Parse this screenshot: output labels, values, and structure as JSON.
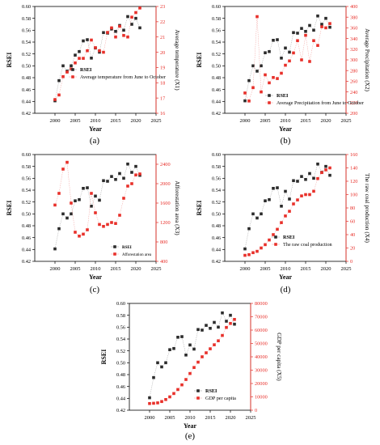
{
  "colors": {
    "rsei": "#2b2b2b",
    "secondary": "#e8302a",
    "axis": "#000000"
  },
  "chart_data": [
    {
      "type": "line",
      "panel_label": "(a)",
      "xlabel": "Year",
      "ylabel": "RSEI",
      "y2label": "Average temperature (X1)",
      "xlim": [
        1995,
        2025
      ],
      "xticks": [
        "2000",
        "2005",
        "2010",
        "2015",
        "2020",
        "2025"
      ],
      "ylim": [
        0.42,
        0.6
      ],
      "yticks": [
        "0.42",
        "0.44",
        "0.46",
        "0.48",
        "0.50",
        "0.52",
        "0.54",
        "0.56",
        "0.58",
        "0.60"
      ],
      "y2lim": [
        16,
        23
      ],
      "y2ticks": [
        "16",
        "17",
        "18",
        "19",
        "20",
        "21",
        "22",
        "23"
      ],
      "legend_position": "center-right",
      "x": [
        2000,
        2001,
        2002,
        2003,
        2004,
        2005,
        2006,
        2007,
        2008,
        2009,
        2010,
        2011,
        2012,
        2013,
        2014,
        2015,
        2016,
        2017,
        2018,
        2019,
        2020,
        2021
      ],
      "series": [
        {
          "name": "RSEI",
          "axis": "left",
          "values": [
            0.441,
            0.475,
            0.5,
            0.491,
            0.5,
            0.518,
            0.524,
            0.542,
            0.544,
            0.513,
            0.53,
            0.523,
            0.556,
            0.555,
            0.562,
            0.558,
            0.568,
            0.56,
            0.583,
            0.57,
            0.58,
            0.564
          ]
        },
        {
          "name": "Average temperature from June to October",
          "axis": "right",
          "values": [
            16.9,
            17.2,
            18.4,
            18.7,
            18.9,
            19.3,
            19.6,
            19.6,
            20.1,
            20.8,
            20.3,
            20.1,
            20.0,
            21.3,
            21.6,
            21.0,
            21.7,
            21.1,
            21.0,
            22.3,
            22.6,
            22.9
          ]
        }
      ]
    },
    {
      "type": "line",
      "panel_label": "(b)",
      "xlabel": "Year",
      "ylabel": "RSEI",
      "y2label": "Average Precipitation (X2)",
      "xlim": [
        1995,
        2025
      ],
      "xticks": [
        "2000",
        "2005",
        "2010",
        "2015",
        "2020",
        "2025"
      ],
      "ylim": [
        0.42,
        0.6
      ],
      "yticks": [
        "0.42",
        "0.44",
        "0.46",
        "0.48",
        "0.50",
        "0.52",
        "0.54",
        "0.56",
        "0.58",
        "0.60"
      ],
      "y2lim": [
        200,
        400
      ],
      "y2ticks": [
        "200",
        "220",
        "240",
        "260",
        "280",
        "300",
        "320",
        "340",
        "360",
        "380",
        "400"
      ],
      "legend_position": "bottom-right",
      "x": [
        2000,
        2001,
        2002,
        2003,
        2004,
        2005,
        2006,
        2007,
        2008,
        2009,
        2010,
        2011,
        2012,
        2013,
        2014,
        2015,
        2016,
        2017,
        2018,
        2019,
        2020,
        2021
      ],
      "series": [
        {
          "name": "RSEI",
          "axis": "left",
          "values": [
            0.441,
            0.475,
            0.5,
            0.491,
            0.5,
            0.522,
            0.524,
            0.543,
            0.544,
            0.513,
            0.53,
            0.523,
            0.556,
            0.555,
            0.563,
            0.558,
            0.568,
            0.56,
            0.584,
            0.57,
            0.58,
            0.565
          ]
        },
        {
          "name": "Average Precipitation from June to October",
          "axis": "right",
          "values": [
            238,
            223,
            248,
            381,
            240,
            272,
            257,
            267,
            265,
            275,
            290,
            298,
            313,
            336,
            300,
            346,
            297,
            336,
            327,
            362,
            360,
            368
          ]
        }
      ]
    },
    {
      "type": "line",
      "panel_label": "(c)",
      "xlabel": "Year",
      "ylabel": "RSEI",
      "y2label": "Afforestation area (X3)",
      "xlim": [
        1995,
        2025
      ],
      "xticks": [
        "2000",
        "2005",
        "2010",
        "2015",
        "2020",
        "2025"
      ],
      "ylim": [
        0.42,
        0.6
      ],
      "yticks": [
        "0.42",
        "0.44",
        "0.46",
        "0.48",
        "0.50",
        "0.52",
        "0.54",
        "0.56",
        "0.58",
        "0.60"
      ],
      "y2lim": [
        400,
        2600
      ],
      "y2ticks": [
        "400",
        "800",
        "1200",
        "1600",
        "2000",
        "2400"
      ],
      "legend_position": "bottom-right",
      "x": [
        2000,
        2001,
        2002,
        2003,
        2004,
        2005,
        2006,
        2007,
        2008,
        2009,
        2010,
        2011,
        2012,
        2013,
        2014,
        2015,
        2016,
        2017,
        2018,
        2019,
        2020,
        2021
      ],
      "series": [
        {
          "name": "RSEI",
          "axis": "left",
          "values": [
            0.441,
            0.475,
            0.5,
            0.493,
            0.5,
            0.522,
            0.524,
            0.543,
            0.544,
            0.513,
            0.53,
            0.523,
            0.556,
            0.555,
            0.563,
            0.558,
            0.568,
            0.56,
            0.584,
            0.57,
            0.58,
            0.565
          ]
        },
        {
          "name": "Afforestation area",
          "axis": "right",
          "values": [
            1560,
            1800,
            2300,
            2440,
            1600,
            1000,
            920,
            960,
            1050,
            1800,
            1400,
            1160,
            1120,
            1160,
            1200,
            1180,
            1350,
            1700,
            1950,
            2000,
            2180,
            2200
          ]
        }
      ]
    },
    {
      "type": "line",
      "panel_label": "(d)",
      "xlabel": "Year",
      "ylabel": "RSEI",
      "y2label": "The raw coal production (X4)",
      "xlim": [
        1995,
        2025
      ],
      "xticks": [
        "2000",
        "2005",
        "2010",
        "2015",
        "2020",
        "2025"
      ],
      "ylim": [
        0.42,
        0.6
      ],
      "yticks": [
        "0.42",
        "0.44",
        "0.46",
        "0.48",
        "0.50",
        "0.52",
        "0.54",
        "0.56",
        "0.58",
        "0.60"
      ],
      "y2lim": [
        0,
        160
      ],
      "y2ticks": [
        "0",
        "20",
        "40",
        "60",
        "80",
        "100",
        "120",
        "140",
        "160"
      ],
      "legend_position": "bottom-right",
      "x": [
        2000,
        2001,
        2002,
        2003,
        2004,
        2005,
        2006,
        2007,
        2008,
        2009,
        2010,
        2011,
        2012,
        2013,
        2014,
        2015,
        2016,
        2017,
        2018,
        2019,
        2020,
        2021
      ],
      "series": [
        {
          "name": "RSEI",
          "axis": "left",
          "values": [
            0.441,
            0.475,
            0.5,
            0.493,
            0.5,
            0.522,
            0.524,
            0.543,
            0.544,
            0.513,
            0.538,
            0.525,
            0.556,
            0.555,
            0.563,
            0.558,
            0.568,
            0.56,
            0.584,
            0.57,
            0.58,
            0.565
          ]
        },
        {
          "name": "The raw coal production",
          "axis": "right",
          "values": [
            9,
            10,
            13,
            15,
            20,
            25,
            32,
            40,
            48,
            58,
            68,
            75,
            86,
            92,
            98,
            100,
            100,
            105,
            124,
            133,
            137,
            140
          ]
        }
      ]
    },
    {
      "type": "line",
      "panel_label": "(e)",
      "xlabel": "Year",
      "ylabel": "RSEI",
      "y2label": "GDP per capita (X5)",
      "xlim": [
        1995,
        2025
      ],
      "xticks": [
        "2000",
        "2005",
        "2010",
        "2015",
        "2020",
        "2025"
      ],
      "ylim": [
        0.42,
        0.6
      ],
      "yticks": [
        "0.42",
        "0.44",
        "0.46",
        "0.48",
        "0.50",
        "0.52",
        "0.54",
        "0.56",
        "0.58",
        "0.60"
      ],
      "y2lim": [
        0,
        80000
      ],
      "y2ticks": [
        "0",
        "10000",
        "20000",
        "30000",
        "40000",
        "50000",
        "60000",
        "70000",
        "80000"
      ],
      "legend_position": "bottom-right",
      "x": [
        2000,
        2001,
        2002,
        2003,
        2004,
        2005,
        2006,
        2007,
        2008,
        2009,
        2010,
        2011,
        2012,
        2013,
        2014,
        2015,
        2016,
        2017,
        2018,
        2019,
        2020,
        2021
      ],
      "series": [
        {
          "name": "RSEI",
          "axis": "left",
          "values": [
            0.441,
            0.475,
            0.5,
            0.493,
            0.5,
            0.522,
            0.524,
            0.543,
            0.544,
            0.513,
            0.53,
            0.523,
            0.556,
            0.555,
            0.563,
            0.558,
            0.568,
            0.56,
            0.584,
            0.57,
            0.58,
            0.565
          ]
        },
        {
          "name": "GDP per capita",
          "axis": "right",
          "values": [
            5000,
            5200,
            5500,
            6500,
            8000,
            10000,
            12500,
            15500,
            19000,
            23000,
            27500,
            32000,
            36000,
            40000,
            43000,
            46000,
            49000,
            52000,
            56000,
            62000,
            65000,
            68000
          ]
        }
      ]
    }
  ]
}
